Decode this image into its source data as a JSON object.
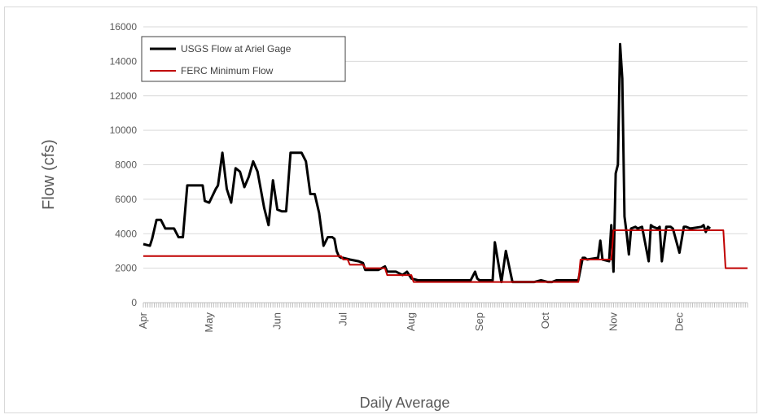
{
  "chart_data": {
    "type": "line",
    "xlabel": "Daily Average",
    "ylabel": "Flow (cfs)",
    "ylim": [
      0,
      16000
    ],
    "yticks": [
      0,
      2000,
      4000,
      6000,
      8000,
      10000,
      12000,
      14000,
      16000
    ],
    "xlim": [
      0,
      275
    ],
    "grid": true,
    "legend_position": "top-left",
    "months": [
      {
        "label": "Apr",
        "day": 0
      },
      {
        "label": "May",
        "day": 30
      },
      {
        "label": "Jun",
        "day": 61
      },
      {
        "label": "Jul",
        "day": 91
      },
      {
        "label": "Aug",
        "day": 122
      },
      {
        "label": "Sep",
        "day": 153
      },
      {
        "label": "Oct",
        "day": 183
      },
      {
        "label": "Nov",
        "day": 214
      },
      {
        "label": "Dec",
        "day": 244
      }
    ],
    "series": [
      {
        "name": "USGS Flow at Ariel Gage",
        "color": "#000000",
        "x": [
          0,
          3,
          4,
          6,
          8,
          10,
          14,
          16,
          18,
          20,
          24,
          27,
          28,
          30,
          33,
          34,
          36,
          38,
          40,
          42,
          44,
          46,
          48,
          50,
          52,
          54,
          55,
          57,
          59,
          61,
          63,
          65,
          67,
          70,
          72,
          74,
          76,
          78,
          80,
          82,
          84,
          86,
          87,
          88,
          89,
          90,
          91,
          94,
          98,
          100,
          101,
          102,
          103,
          107,
          110,
          111,
          115,
          118,
          120,
          122,
          125,
          130,
          133,
          135,
          136,
          140,
          147,
          149,
          151,
          152,
          153,
          155,
          157,
          158,
          159,
          160,
          163,
          165,
          168,
          174,
          176,
          178,
          181,
          184,
          186,
          188,
          190,
          198,
          200,
          201,
          202,
          207,
          208,
          209,
          212,
          213,
          214,
          215,
          216,
          217,
          218,
          219,
          220,
          221,
          222,
          224,
          225,
          227,
          230,
          231,
          232,
          234,
          235,
          236,
          238,
          240,
          241,
          244,
          246,
          247,
          249,
          254,
          255,
          256,
          257,
          258
        ],
        "y": [
          3400,
          3300,
          3700,
          4800,
          4800,
          4300,
          4300,
          3800,
          3800,
          6800,
          6800,
          6800,
          5900,
          5800,
          6600,
          6800,
          8700,
          6600,
          5800,
          7800,
          7600,
          6700,
          7300,
          8200,
          7600,
          6200,
          5500,
          4500,
          7100,
          5400,
          5300,
          5300,
          8700,
          8700,
          8700,
          8200,
          6300,
          6300,
          5200,
          3300,
          3800,
          3800,
          3700,
          3000,
          2700,
          2600,
          2600,
          2500,
          2400,
          2300,
          1900,
          1900,
          1900,
          1900,
          2100,
          1800,
          1800,
          1600,
          1800,
          1400,
          1300,
          1300,
          1300,
          1300,
          1300,
          1300,
          1300,
          1300,
          1800,
          1400,
          1300,
          1300,
          1300,
          1300,
          1300,
          3500,
          1200,
          3000,
          1200,
          1200,
          1200,
          1200,
          1300,
          1200,
          1200,
          1300,
          1300,
          1300,
          2600,
          2600,
          2500,
          2600,
          3600,
          2500,
          2400,
          4500,
          1800,
          7500,
          8000,
          15000,
          13000,
          5000,
          4000,
          2800,
          4300,
          4400,
          4300,
          4400,
          2400,
          4500,
          4400,
          4300,
          4400,
          2400,
          4400,
          4400,
          4300,
          2900,
          4400,
          4400,
          4300,
          4400,
          4500,
          4100,
          4400,
          4300
        ]
      },
      {
        "name": "FERC Minimum Flow",
        "color": "#c00000",
        "x": [
          0,
          90,
          91,
          93,
          94,
          100,
          101,
          110,
          111,
          122,
          123,
          183,
          184,
          198,
          199,
          213,
          214,
          256,
          257,
          264,
          265,
          275
        ],
        "y": [
          2700,
          2700,
          2500,
          2500,
          2200,
          2200,
          2000,
          2000,
          1600,
          1600,
          1200,
          1200,
          1200,
          1200,
          2500,
          2500,
          4200,
          4200,
          4200,
          4200,
          2000,
          2000
        ]
      }
    ]
  }
}
